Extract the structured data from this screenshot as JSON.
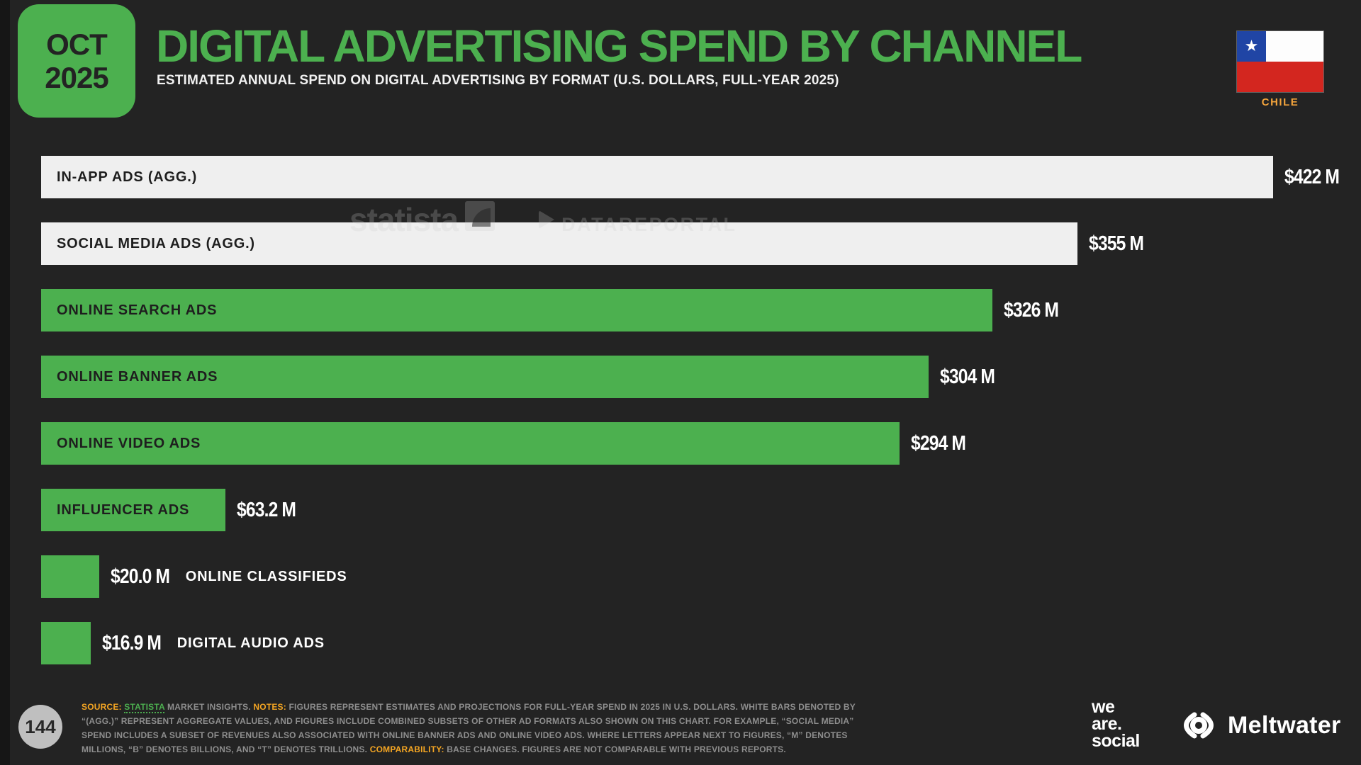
{
  "header": {
    "badge_month": "OCT",
    "badge_year": "2025",
    "title": "DIGITAL ADVERTISING SPEND BY CHANNEL",
    "subtitle": "ESTIMATED ANNUAL SPEND ON DIGITAL ADVERTISING BY FORMAT (U.S. DOLLARS, FULL-YEAR 2025)",
    "country": "CHILE"
  },
  "watermark": {
    "statista": "statista",
    "datareportal": "DATAREPORTAL"
  },
  "chart_data": {
    "type": "bar",
    "orientation": "horizontal",
    "title": "DIGITAL ADVERTISING SPEND BY CHANNEL",
    "unit": "U.S. dollars, millions, full-year 2025",
    "categories": [
      "IN-APP ADS (AGG.)",
      "SOCIAL MEDIA ADS (AGG.)",
      "ONLINE SEARCH ADS",
      "ONLINE BANNER ADS",
      "ONLINE VIDEO ADS",
      "INFLUENCER ADS",
      "ONLINE CLASSIFIEDS",
      "DIGITAL AUDIO ADS"
    ],
    "values": [
      422,
      355,
      326,
      304,
      294,
      63.2,
      20.0,
      16.9
    ],
    "value_labels": [
      "$422 M",
      "$355 M",
      "$326 M",
      "$304 M",
      "$294 M",
      "$63.2 M",
      "$20.0 M",
      "$16.9 M"
    ],
    "bar_colors": [
      "white",
      "white",
      "green",
      "green",
      "green",
      "green",
      "green",
      "green"
    ],
    "label_positions": [
      "inside",
      "inside",
      "inside",
      "inside",
      "inside",
      "inside",
      "outside",
      "outside"
    ],
    "xlim": [
      0,
      460
    ],
    "grid": false,
    "legend": false,
    "colors": {
      "green_bar": "#4cb04f",
      "white_bar": "#efefef",
      "background": "#232323",
      "value_text": "#ffffff",
      "inside_label_text": "#1e1e1e"
    }
  },
  "footer": {
    "page_number": "144",
    "source_label": "SOURCE:",
    "source_link": "STATISTA",
    "source_rest": "MARKET INSIGHTS.",
    "notes_label": "NOTES:",
    "notes_text": "FIGURES REPRESENT ESTIMATES AND PROJECTIONS FOR FULL-YEAR SPEND IN 2025 IN U.S. DOLLARS. WHITE BARS DENOTED BY “(AGG.)” REPRESENT AGGREGATE VALUES, AND FIGURES INCLUDE COMBINED SUBSETS OF OTHER AD FORMATS ALSO SHOWN ON THIS CHART. FOR EXAMPLE, “SOCIAL MEDIA” SPEND INCLUDES A SUBSET OF REVENUES ALSO ASSOCIATED WITH ONLINE BANNER ADS AND ONLINE VIDEO ADS. WHERE LETTERS APPEAR NEXT TO FIGURES, “M” DENOTES MILLIONS, “B” DENOTES BILLIONS, AND “T” DENOTES TRILLIONS.",
    "comparability_label": "COMPARABILITY:",
    "comparability_text": "BASE CHANGES. FIGURES ARE NOT COMPARABLE WITH PREVIOUS REPORTS.",
    "was_line1": "we",
    "was_line2": "are.",
    "was_line3": "social",
    "meltwater_label": "Meltwater"
  }
}
